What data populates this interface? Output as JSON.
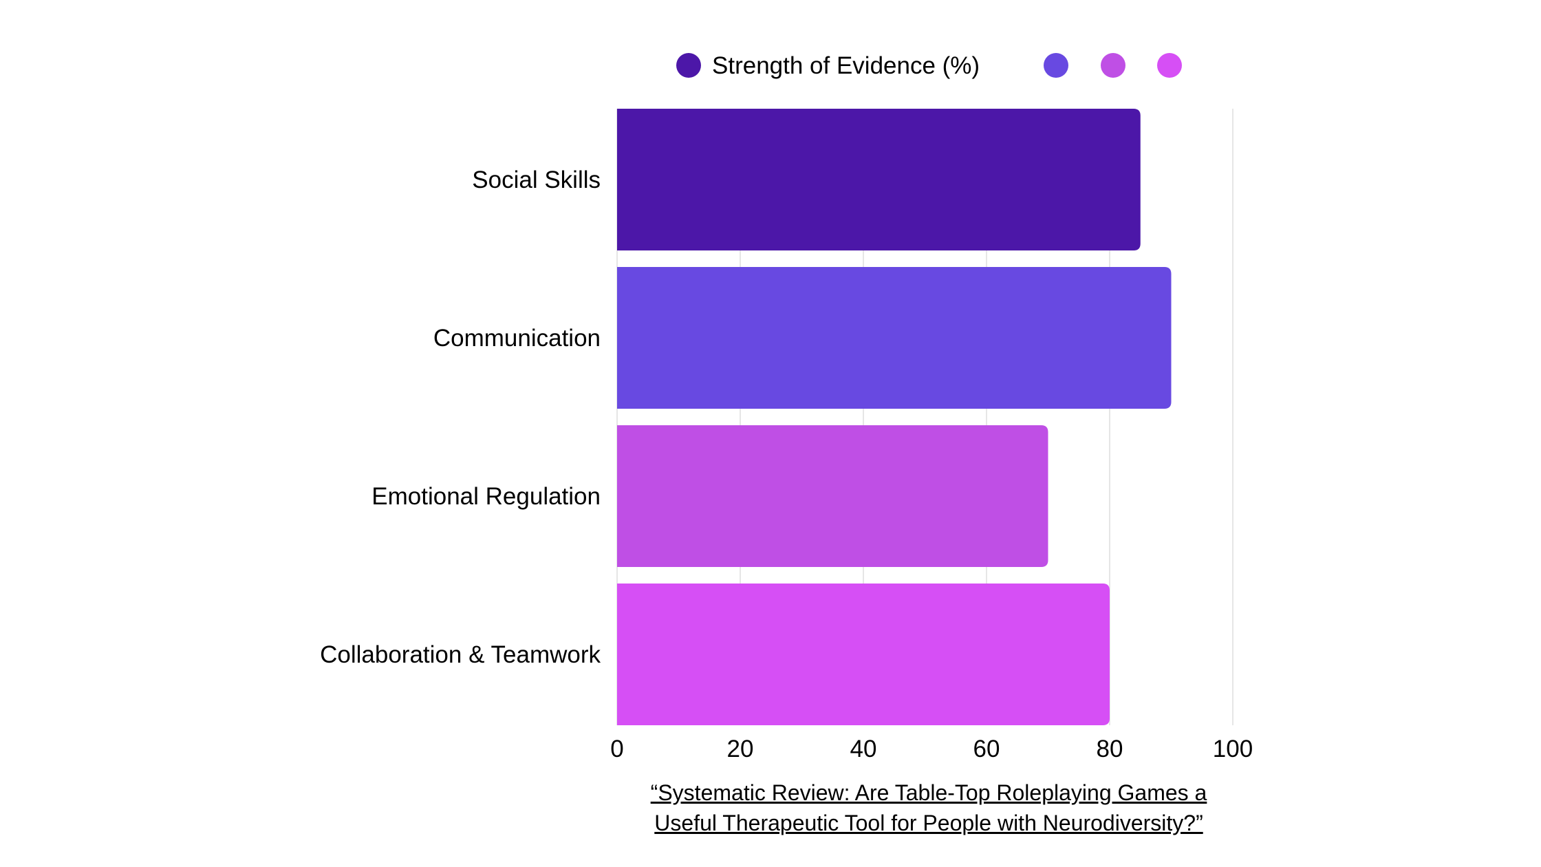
{
  "chart_data": {
    "type": "bar",
    "orientation": "horizontal",
    "title": "",
    "xlabel": "",
    "ylabel": "",
    "xlim": [
      0,
      100
    ],
    "x_ticks": [
      0,
      20,
      40,
      60,
      80,
      100
    ],
    "grid": true,
    "legend_position": "top",
    "categories": [
      "Social Skills",
      "Communication",
      "Emotional Regulation",
      "Collaboration & Teamwork"
    ],
    "series": [
      {
        "name": "Strength of Evidence (%)",
        "values": [
          85,
          90,
          70,
          80
        ]
      }
    ],
    "bar_colors": [
      "#4c17a8",
      "#6849e1",
      "#bf4fe5",
      "#d64ff5"
    ],
    "legend_entries": [
      {
        "label": "Strength of Evidence (%)",
        "color": "#4c17a8"
      },
      {
        "label": "",
        "color": "#6849e1"
      },
      {
        "label": "",
        "color": "#bf4fe5"
      },
      {
        "label": "",
        "color": "#d64ff5"
      }
    ]
  },
  "caption": {
    "line1": "“Systematic Review: Are Table-Top Roleplaying Games a ",
    "line2": "Useful Therapeutic Tool for People with Neurodiversity?”"
  }
}
